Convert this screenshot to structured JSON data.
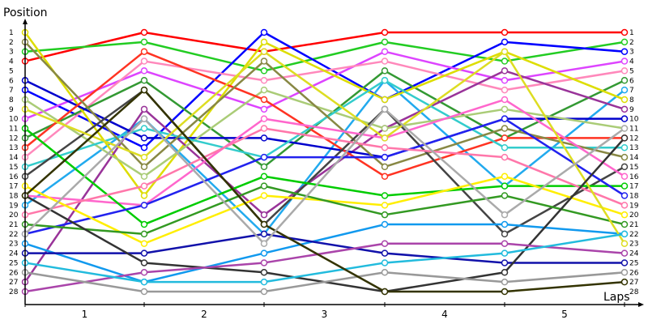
{
  "chart_data": {
    "type": "line",
    "ylabel": "Position",
    "xlabel": "Laps",
    "x_tick_labels": [
      "1",
      "2",
      "3",
      "4",
      "5"
    ],
    "y_tick_labels": [
      "1",
      "2",
      "3",
      "4",
      "5",
      "6",
      "7",
      "8",
      "9",
      "10",
      "11",
      "12",
      "13",
      "14",
      "15",
      "16",
      "17",
      "18",
      "19",
      "20",
      "21",
      "22",
      "23",
      "24",
      "25",
      "26",
      "27",
      "28"
    ],
    "x": [
      0,
      1,
      2,
      3,
      4,
      5
    ],
    "ylim": [
      1,
      28
    ],
    "y_inverted": true,
    "grid": false,
    "series": [
      {
        "color": "#ff0000",
        "values": [
          4,
          1,
          3,
          1,
          1,
          1
        ]
      },
      {
        "color": "#22cc22",
        "values": [
          3,
          2,
          5,
          2,
          4,
          2
        ]
      },
      {
        "color": "#0000ff",
        "values": [
          7,
          13,
          1,
          8,
          2,
          3
        ]
      },
      {
        "color": "#dd44ff",
        "values": [
          10,
          5,
          9,
          3,
          6,
          4
        ]
      },
      {
        "color": "#ff88bb",
        "values": [
          14,
          4,
          6,
          4,
          7,
          5
        ]
      },
      {
        "color": "#339933",
        "values": [
          12,
          6,
          15,
          5,
          12,
          6
        ]
      },
      {
        "color": "#22aaee",
        "values": [
          19,
          10,
          22,
          6,
          17,
          7
        ]
      },
      {
        "color": "#dddd00",
        "values": [
          1,
          18,
          2,
          8,
          3,
          8
        ]
      },
      {
        "color": "#993399",
        "values": [
          27,
          9,
          20,
          11,
          5,
          9
        ]
      },
      {
        "color": "#0000cc",
        "values": [
          6,
          12,
          12,
          14,
          10,
          10
        ]
      },
      {
        "color": "#aacc77",
        "values": [
          8,
          16,
          7,
          11,
          9,
          11
        ]
      },
      {
        "color": "#ff3322",
        "values": [
          13,
          3,
          8,
          16,
          12,
          12
        ]
      },
      {
        "color": "#33cccc",
        "values": [
          15,
          11,
          14,
          6,
          13,
          13
        ]
      },
      {
        "color": "#888844",
        "values": [
          2,
          15,
          4,
          15,
          11,
          14
        ]
      },
      {
        "color": "#444444",
        "values": [
          16,
          7,
          21,
          9,
          22,
          15
        ]
      },
      {
        "color": "#ff66cc",
        "values": [
          18,
          19,
          10,
          12,
          8,
          16
        ]
      },
      {
        "color": "#00cc00",
        "values": [
          11,
          21,
          16,
          18,
          17,
          17
        ]
      },
      {
        "color": "#2222ee",
        "values": [
          22,
          19,
          14,
          14,
          10,
          18
        ]
      },
      {
        "color": "#ff77aa",
        "values": [
          20,
          17,
          11,
          13,
          14,
          19
        ]
      },
      {
        "color": "#ffee00",
        "values": [
          17,
          23,
          18,
          19,
          16,
          20
        ]
      },
      {
        "color": "#339922",
        "values": [
          21,
          22,
          17,
          20,
          18,
          21
        ]
      },
      {
        "color": "#1199ee",
        "values": [
          23,
          27,
          24,
          21,
          21,
          22
        ]
      },
      {
        "color": "#dddd22",
        "values": [
          9,
          14,
          3,
          12,
          3,
          23
        ]
      },
      {
        "color": "#1111aa",
        "values": [
          24,
          24,
          22,
          24,
          25,
          25
        ]
      },
      {
        "color": "#333333",
        "values": [
          18,
          25,
          26,
          28,
          26,
          12
        ]
      },
      {
        "color": "#aa44aa",
        "values": [
          28,
          26,
          25,
          23,
          23,
          24
        ]
      },
      {
        "color": "#22bbdd",
        "values": [
          25,
          27,
          27,
          25,
          24,
          22
        ]
      },
      {
        "color": "#999999",
        "values": [
          26,
          28,
          28,
          26,
          27,
          26
        ]
      },
      {
        "color": "#333300",
        "values": [
          18,
          7,
          21,
          28,
          28,
          27
        ]
      },
      {
        "color": "#aaaaaa",
        "values": [
          22,
          10,
          23,
          9,
          20,
          11
        ]
      }
    ]
  }
}
